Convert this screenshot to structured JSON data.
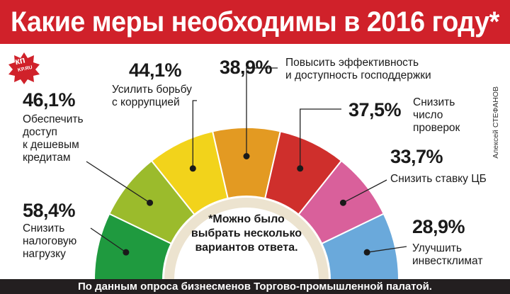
{
  "header": {
    "title": "Какие меры необходимы в 2016 году*"
  },
  "footer": {
    "source": "По данным опроса бизнесменов Торгово-промышленной палатой."
  },
  "logo": {
    "main": "кп",
    "sub": "KP.RU"
  },
  "author": "Алексей СТЕФАНОВ",
  "note": "*Можно было\nвыбрать несколько\nвариантов ответа.",
  "colors": {
    "header_bg": "#d0212a",
    "footer_bg": "#231f20",
    "inner_arc": "#ece3cf"
  },
  "chart_data": {
    "type": "pie",
    "subtype": "semicircle-gauge",
    "unit": "%",
    "categories": [
      "Снизить налоговую нагрузку",
      "Обеспечить доступ к дешевым кредитам",
      "Усилить борьбу с коррупцией",
      "Повысить эффективность и доступность господдержки",
      "Снизить число проверок",
      "Снизить ставку ЦБ",
      "Улучшить инвестклимат"
    ],
    "values": [
      58.4,
      46.1,
      44.1,
      38.9,
      37.5,
      33.7,
      28.9
    ],
    "value_labels": [
      "58,4%",
      "46,1%",
      "44,1%",
      "38,9%",
      "37,5%",
      "33,7%",
      "28,9%"
    ],
    "label_lines": [
      "Снизить\nналоговую\nнагрузку",
      "Обеспечить\nдоступ\nк дешевым\nкредитам",
      "Усилить борьбу\nс коррупцией",
      "Повысить эффективность\nи доступность господдержки",
      "Снизить\nчисло\nпроверок",
      "Снизить ставку ЦБ",
      "Улучшить\nинвестклимат"
    ],
    "segment_colors": [
      "#1f9a3f",
      "#9bbb2c",
      "#f2d31b",
      "#e39a22",
      "#cf2f2c",
      "#d9609b",
      "#6aa9db"
    ]
  }
}
